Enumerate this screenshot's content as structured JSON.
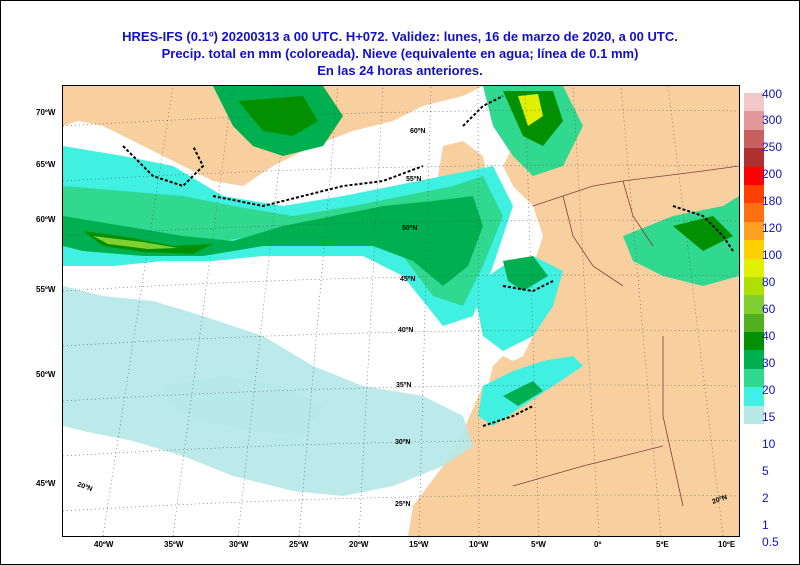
{
  "title": {
    "line1": "HRES-IFS (0.1º) 20200313 a 00 UTC.  H+072. Validez: lunes, 16 de marzo de 2020,  a  00 UTC.",
    "line2": "Precip. total en mm (coloreada). Nieve (equivalente en agua; línea de 0.1 mm)",
    "line3": "En las 24 horas anteriores."
  },
  "colors": {
    "sea": "#ffffff",
    "land": "#f8d0a0",
    "title": "#1010c8",
    "snow_line": "#000000"
  },
  "left_lat_labels": [
    "70ºW",
    "65ºW",
    "60ºW",
    "55ºW",
    "50ºW",
    "45ºW"
  ],
  "bottom_lon_labels": [
    "40ºW",
    "35ºW",
    "30ºW",
    "25ºW",
    "20ºW",
    "15ºW",
    "10ºW",
    "5ºW",
    "0º",
    "5ºE",
    "10ºE"
  ],
  "inner_lat_labels": [
    "60ºN",
    "55ºN",
    "50ºN",
    "45ºN",
    "40ºN",
    "35ºN",
    "30ºN",
    "25ºN"
  ],
  "inner_corner_labels": [
    "20ºN",
    "20ºN"
  ],
  "legend": {
    "levels": [
      "400",
      "300",
      "250",
      "200",
      "180",
      "120",
      "100",
      "80",
      "60",
      "40",
      "30",
      "20",
      "15",
      "10",
      "5",
      "2",
      "1",
      "0.5"
    ],
    "colors": [
      "#f0c8c8",
      "#e09898",
      "#c86060",
      "#b03030",
      "#ff0000",
      "#ff4000",
      "#ff7010",
      "#ffa020",
      "#ffd000",
      "#e0f000",
      "#b0e000",
      "#80d030",
      "#50b020",
      "#009000",
      "#00b050",
      "#30d890",
      "#40f0e0",
      "#b8e8e8"
    ]
  }
}
